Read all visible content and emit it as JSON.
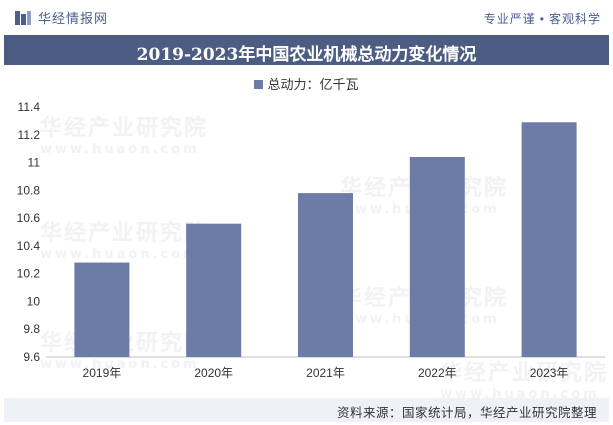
{
  "header": {
    "brand": "华经情报网",
    "slogan_left": "专业严谨",
    "slogan_sep": "•",
    "slogan_right": "客观科学"
  },
  "watermark": {
    "cn": "华经产业研究院",
    "en": "www.huaon.com"
  },
  "footer": {
    "source": "资料来源：国家统计局，华经产业研究院整理"
  },
  "colors": {
    "bar": "#6d7ca6",
    "title_bg": "#4c5c83",
    "footer_bg": "#eef1f8",
    "brand": "#4a5f8c"
  },
  "chart_data": {
    "type": "bar",
    "title": "2019-2023年中国农业机械总动力变化情况",
    "categories": [
      "2019年",
      "2020年",
      "2021年",
      "2022年",
      "2023年"
    ],
    "series": [
      {
        "name": "总动力：亿千瓦",
        "values": [
          10.28,
          10.56,
          10.78,
          11.04,
          11.29
        ]
      }
    ],
    "ylim": [
      9.6,
      11.4
    ],
    "yticks": [
      "9.6",
      "9.8",
      "10",
      "10.2",
      "10.4",
      "10.6",
      "10.8",
      "11",
      "11.2",
      "11.4"
    ],
    "xlabel": "",
    "ylabel": "",
    "grid": false,
    "legend_position": "top-center"
  }
}
